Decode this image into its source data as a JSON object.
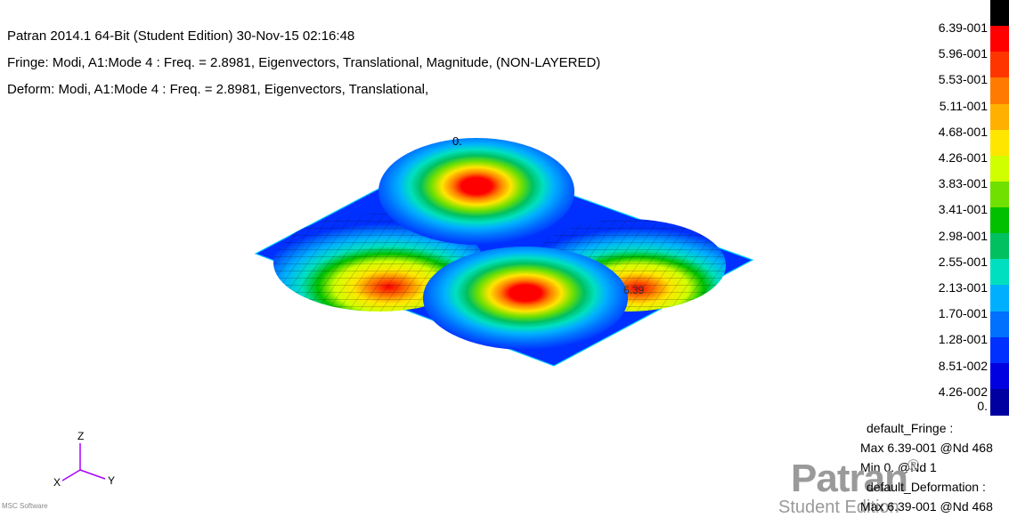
{
  "header": {
    "line1": "Patran 2014.1 64-Bit  (Student Edition) 30-Nov-15 02:16:48",
    "line2": "Fringe: Modi, A1:Mode 4 : Freq. = 2.8981, Eigenvectors, Translational, Magnitude, (NON-LAYERED)",
    "line3": "Deform: Modi, A1:Mode 4 : Freq. = 2.8981, Eigenvectors, Translational,"
  },
  "plot_labels": {
    "origin": "0.",
    "max_marker": "6.39"
  },
  "legend": {
    "values": [
      "6.39-001",
      "5.96-001",
      "5.53-001",
      "5.11-001",
      "4.68-001",
      "4.26-001",
      "3.83-001",
      "3.41-001",
      "2.98-001",
      "2.55-001",
      "2.13-001",
      "1.70-001",
      "1.28-001",
      "8.51-002",
      "4.26-002",
      "0."
    ],
    "colors": [
      "#000000",
      "#ff0000",
      "#ff3500",
      "#ff7a00",
      "#ffb000",
      "#ffe600",
      "#d0ff00",
      "#70e000",
      "#00c000",
      "#00c060",
      "#00e0c0",
      "#00b0ff",
      "#0070ff",
      "#0030ff",
      "#0000e0",
      "#0000a0"
    ]
  },
  "stats": {
    "fringe_title": "default_Fringe :",
    "fringe_max": "Max 6.39-001 @Nd 468",
    "fringe_min": "Min 0. @Nd 1",
    "deform_title": "default_Deformation :",
    "deform_max": "Max 6.39-001 @Nd 468"
  },
  "axes": {
    "z": "Z",
    "x": "X",
    "y": "Y"
  },
  "brand": {
    "name": "Patran",
    "reg": "®",
    "edition": "Student Edition",
    "vendor": "MSC Software"
  }
}
